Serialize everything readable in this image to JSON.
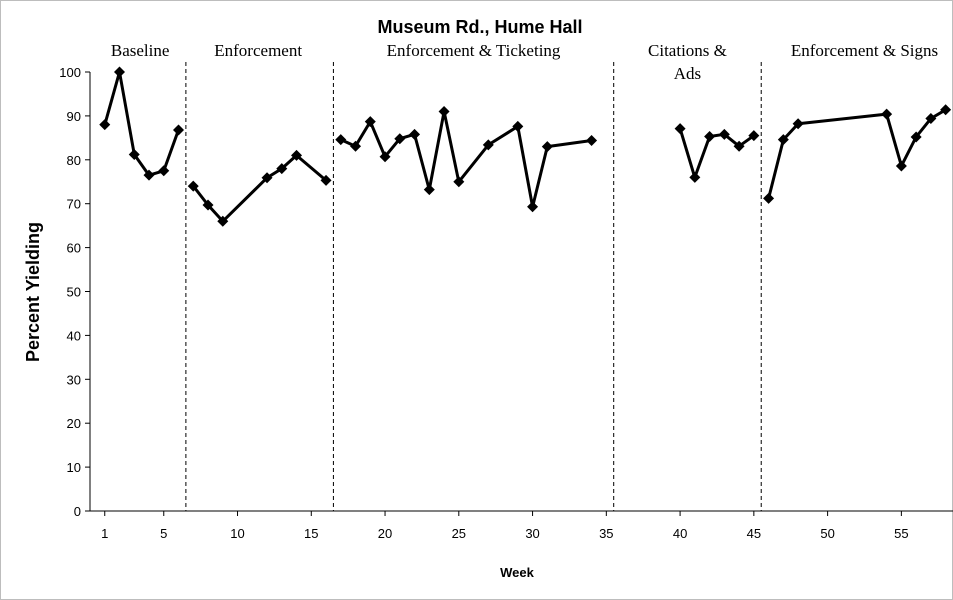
{
  "chart_data": {
    "type": "line",
    "title": "Museum Rd., Hume Hall",
    "xlabel": "Week",
    "ylabel": "Percent  Yielding",
    "xlim": [
      0,
      58.5
    ],
    "ylim": [
      0,
      100
    ],
    "x_ticks": [
      1,
      5,
      10,
      15,
      20,
      25,
      30,
      35,
      40,
      45,
      50,
      55
    ],
    "y_ticks": [
      0,
      10,
      20,
      30,
      40,
      50,
      60,
      70,
      80,
      90,
      100
    ],
    "phase_boundaries": [
      6.5,
      16.5,
      35.5,
      45.5
    ],
    "phase_labels": [
      {
        "lines": [
          "Baseline"
        ],
        "x_center": 3.4
      },
      {
        "lines": [
          "Enforcement"
        ],
        "x_center": 11.4
      },
      {
        "lines": [
          "Enforcement  & Ticketing"
        ],
        "x_center": 26
      },
      {
        "lines": [
          "Citations &",
          "Ads"
        ],
        "x_center": 40.5
      },
      {
        "lines": [
          "Enforcement  & Signs"
        ],
        "x_center": 52.5
      }
    ],
    "grid": false,
    "legend": "none",
    "series": [
      {
        "segment": "Baseline",
        "points": [
          [
            1,
            88
          ],
          [
            2,
            100
          ],
          [
            3,
            81.2
          ],
          [
            4,
            76.5
          ],
          [
            5,
            77.5
          ],
          [
            6,
            86.8
          ]
        ]
      },
      {
        "segment": "Enforcement",
        "points": [
          [
            7,
            74
          ],
          [
            8,
            69.7
          ],
          [
            9,
            66
          ],
          [
            12,
            75.9
          ],
          [
            13,
            78
          ],
          [
            14,
            81
          ],
          [
            16,
            75.3
          ]
        ]
      },
      {
        "segment": "Enforcement & Ticketing",
        "points": [
          [
            17,
            84.6
          ],
          [
            18,
            83.1
          ],
          [
            19,
            88.7
          ],
          [
            20,
            80.7
          ],
          [
            21,
            84.8
          ],
          [
            22,
            85.8
          ],
          [
            23,
            73.2
          ],
          [
            24,
            91
          ],
          [
            25,
            75
          ],
          [
            27,
            83.4
          ],
          [
            29,
            87.6
          ],
          [
            30,
            69.3
          ],
          [
            31,
            83
          ],
          [
            34,
            84.4
          ]
        ]
      },
      {
        "segment": "Citations & Ads",
        "points": [
          [
            40,
            87.1
          ],
          [
            41,
            76
          ],
          [
            42,
            85.3
          ],
          [
            43,
            85.8
          ],
          [
            44,
            83.1
          ],
          [
            45,
            85.5
          ]
        ]
      },
      {
        "segment": "Enforcement & Signs",
        "points": [
          [
            46,
            71.2
          ],
          [
            47,
            84.6
          ],
          [
            48,
            88.2
          ],
          [
            54,
            90.4
          ],
          [
            55,
            78.6
          ],
          [
            56,
            85.2
          ],
          [
            57,
            89.4
          ],
          [
            58,
            91.4
          ]
        ]
      }
    ],
    "colors": {
      "line": "#000000",
      "marker": "#000000",
      "axis": "#000000",
      "phase_line": "#000000"
    }
  }
}
